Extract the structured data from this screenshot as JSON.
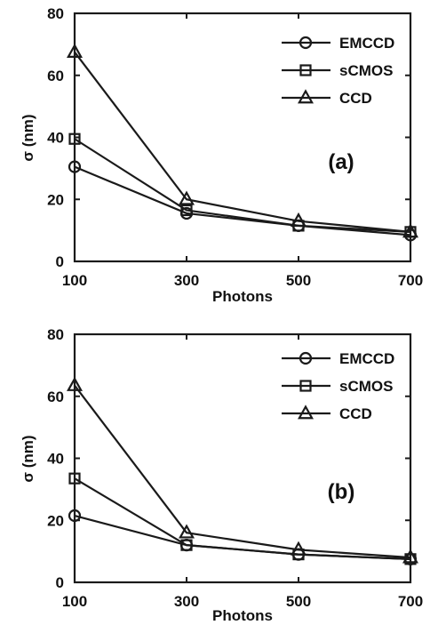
{
  "chart_data": [
    {
      "type": "line",
      "panel_label": "(a)",
      "xlabel": "Photons",
      "ylabel": "σ (nm)",
      "x": [
        100,
        300,
        500,
        700
      ],
      "xlim": [
        100,
        700
      ],
      "ylim": [
        0,
        80
      ],
      "xticks": [
        "100",
        "300",
        "500",
        "700"
      ],
      "yticks": [
        "0",
        "20",
        "40",
        "60",
        "80"
      ],
      "grid": false,
      "legend_position": "top-right",
      "series": [
        {
          "name": "EMCCD",
          "marker": "circle",
          "values": [
            30.5,
            15.5,
            11.5,
            8.5
          ]
        },
        {
          "name": "sCMOS",
          "marker": "square",
          "values": [
            39.5,
            16.5,
            11.5,
            9.5
          ]
        },
        {
          "name": "CCD",
          "marker": "triangle",
          "values": [
            67.5,
            20.0,
            13.0,
            9.5
          ]
        }
      ]
    },
    {
      "type": "line",
      "panel_label": "(b)",
      "xlabel": "Photons",
      "ylabel": "σ (nm)",
      "x": [
        100,
        300,
        500,
        700
      ],
      "xlim": [
        100,
        700
      ],
      "ylim": [
        0,
        80
      ],
      "xticks": [
        "100",
        "300",
        "500",
        "700"
      ],
      "yticks": [
        "0",
        "20",
        "40",
        "60",
        "80"
      ],
      "grid": false,
      "legend_position": "top-right",
      "series": [
        {
          "name": "EMCCD",
          "marker": "circle",
          "values": [
            21.5,
            12.0,
            9.0,
            7.5
          ]
        },
        {
          "name": "sCMOS",
          "marker": "square",
          "values": [
            33.5,
            12.0,
            9.0,
            7.5
          ]
        },
        {
          "name": "CCD",
          "marker": "triangle",
          "values": [
            63.5,
            16.0,
            10.5,
            8.0
          ]
        }
      ]
    }
  ]
}
